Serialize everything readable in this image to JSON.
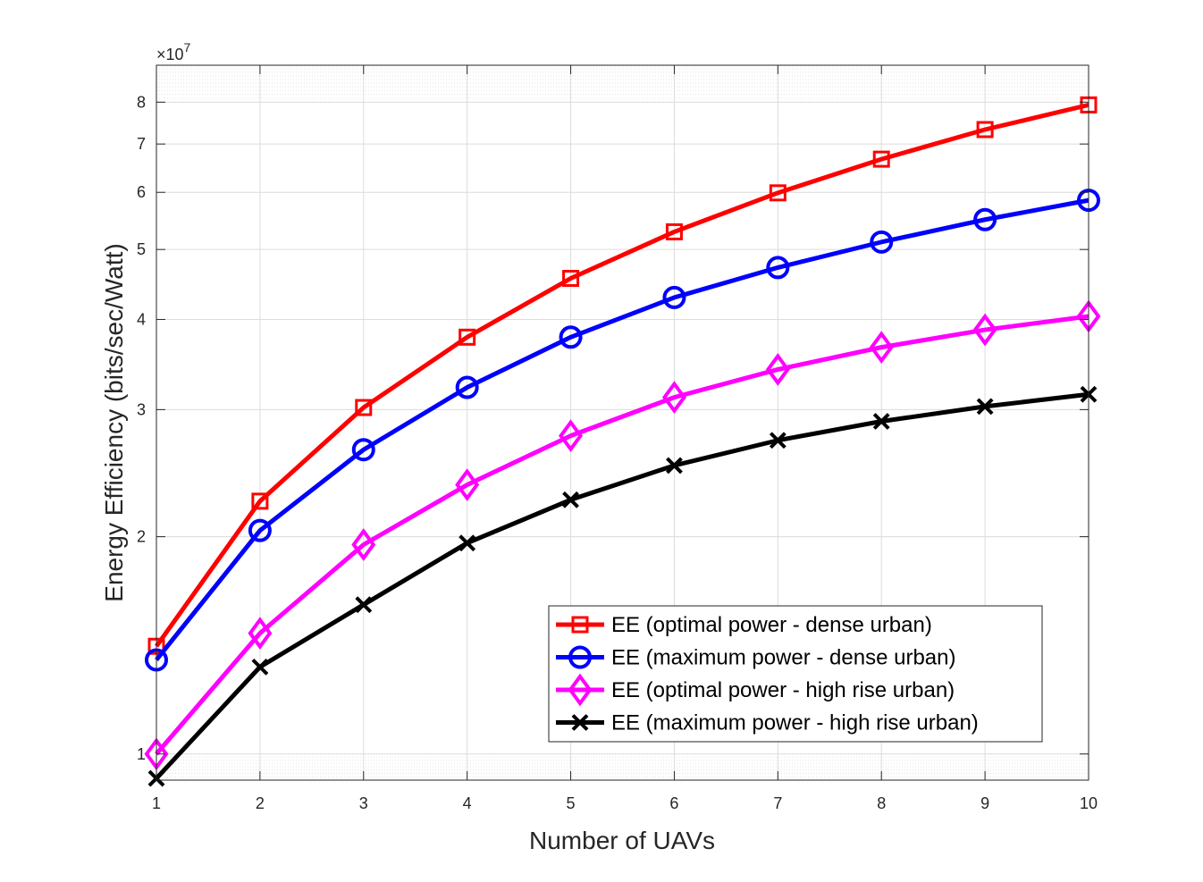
{
  "chart_data": {
    "type": "line",
    "title": "",
    "xlabel": "Number of UAVs",
    "ylabel": "Energy Efficiency (bits/sec/Watt)",
    "y_scale": "log",
    "y_multiplier_label": "×10",
    "y_multiplier_exponent": "7",
    "xlim": [
      1,
      10
    ],
    "ylim": [
      0.92,
      9.0
    ],
    "grid": true,
    "x": [
      1,
      2,
      3,
      4,
      5,
      6,
      7,
      8,
      9,
      10
    ],
    "x_tick_labels": [
      "1",
      "2",
      "3",
      "4",
      "5",
      "6",
      "7",
      "8",
      "9",
      "10"
    ],
    "y_ticks": [
      1,
      2,
      3,
      4,
      5,
      6,
      7,
      8
    ],
    "y_tick_labels": [
      "1",
      "2",
      "3",
      "4",
      "5",
      "6",
      "7",
      "8"
    ],
    "legend_position": "bottom-right",
    "series": [
      {
        "name": "EE (optimal power - dense urban)",
        "color": "#ff0000",
        "marker": "square",
        "values": [
          1.41,
          2.24,
          3.02,
          3.78,
          4.56,
          5.29,
          5.99,
          6.67,
          7.33,
          7.93
        ]
      },
      {
        "name": "EE (maximum power - dense urban)",
        "color": "#0000ff",
        "marker": "circle",
        "values": [
          1.35,
          2.04,
          2.64,
          3.22,
          3.78,
          4.29,
          4.72,
          5.12,
          5.5,
          5.85
        ]
      },
      {
        "name": "EE (optimal power - high rise urban)",
        "color": "#ff00ff",
        "marker": "diamond",
        "values": [
          1.0,
          1.47,
          1.95,
          2.36,
          2.76,
          3.12,
          3.41,
          3.66,
          3.87,
          4.04
        ]
      },
      {
        "name": "EE (maximum power - high rise urban)",
        "color": "#000000",
        "marker": "x",
        "values": [
          0.925,
          1.32,
          1.61,
          1.96,
          2.25,
          2.51,
          2.72,
          2.89,
          3.03,
          3.15
        ]
      }
    ]
  }
}
